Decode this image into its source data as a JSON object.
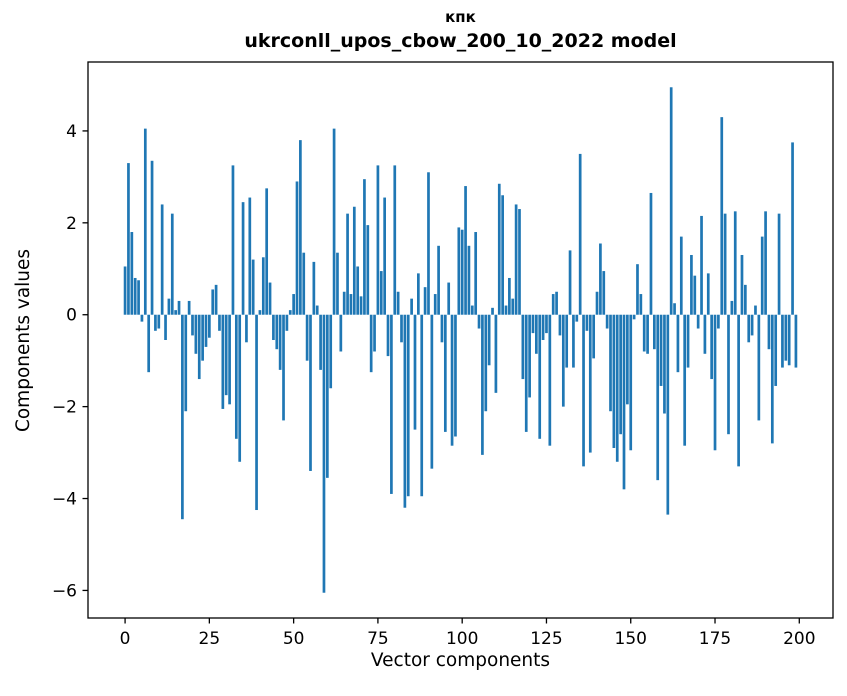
{
  "chart_data": {
    "type": "bar",
    "title": "кпк",
    "subtitle": "ukrconll_upos_cbow_200_10_2022 model",
    "xlabel": "Vector components",
    "ylabel": "Components values",
    "xlim": [
      -11,
      210
    ],
    "ylim": [
      -6.6,
      5.5
    ],
    "xticks": [
      0,
      25,
      50,
      75,
      100,
      125,
      150,
      175,
      200
    ],
    "yticks": [
      4,
      2,
      0,
      -2,
      -4,
      -6
    ],
    "grid": false,
    "legend": "none",
    "bar_color": "#1f77b4",
    "spine_color": "#000000",
    "bar_width_units": 0.8,
    "n_bars": 200,
    "values": [
      1.05,
      3.3,
      1.8,
      0.8,
      0.75,
      -0.15,
      4.05,
      -1.25,
      3.35,
      -0.35,
      -0.3,
      2.4,
      -0.55,
      0.35,
      2.2,
      0.1,
      0.3,
      -4.45,
      -2.1,
      0.3,
      -0.45,
      -0.85,
      -1.4,
      -1.0,
      -0.7,
      -0.5,
      0.55,
      0.65,
      -0.35,
      -2.05,
      -1.75,
      -1.95,
      3.25,
      -2.7,
      -3.2,
      2.45,
      -0.6,
      2.55,
      1.2,
      -4.25,
      0.1,
      1.25,
      2.75,
      0.7,
      -0.55,
      -0.75,
      -1.2,
      -2.3,
      -0.35,
      0.1,
      0.45,
      2.9,
      3.8,
      1.35,
      -1.0,
      -3.4,
      1.15,
      0.2,
      -1.2,
      -6.05,
      -3.55,
      -1.6,
      4.05,
      1.35,
      -0.8,
      0.5,
      2.2,
      0.45,
      2.35,
      1.05,
      0.4,
      2.95,
      1.95,
      -1.25,
      -0.8,
      3.25,
      0.95,
      2.55,
      -0.9,
      -3.9,
      3.25,
      0.5,
      -0.6,
      -4.2,
      -3.95,
      0.35,
      -2.5,
      0.9,
      -3.95,
      0.6,
      3.1,
      -3.35,
      0.45,
      1.5,
      -0.6,
      -2.55,
      0.7,
      -2.85,
      -2.65,
      1.9,
      1.85,
      2.8,
      1.5,
      0.2,
      1.8,
      -0.3,
      -3.05,
      -2.1,
      -1.1,
      0.15,
      -1.7,
      2.85,
      2.6,
      0.2,
      0.8,
      0.35,
      2.4,
      2.3,
      -1.4,
      -2.55,
      -1.8,
      -0.4,
      -0.85,
      -2.7,
      -0.55,
      -0.4,
      -2.85,
      0.45,
      0.5,
      -0.45,
      -2.0,
      -1.15,
      1.4,
      -1.15,
      -0.15,
      3.5,
      -3.3,
      -0.35,
      -3.0,
      -0.95,
      0.5,
      1.55,
      0.95,
      -0.3,
      -2.1,
      -2.9,
      -3.2,
      -2.6,
      -3.8,
      -1.95,
      -2.95,
      -0.1,
      1.1,
      0.45,
      -0.8,
      -0.85,
      2.65,
      -0.75,
      -3.6,
      -1.55,
      -2.15,
      -4.35,
      4.95,
      0.25,
      -1.25,
      1.7,
      -2.85,
      -1.15,
      1.3,
      0.85,
      -0.3,
      2.15,
      -0.85,
      0.9,
      -1.4,
      -2.95,
      -0.3,
      4.3,
      2.2,
      -2.6,
      0.3,
      2.25,
      -3.3,
      1.3,
      0.65,
      -0.6,
      -0.45,
      0.2,
      -2.3,
      1.7,
      2.25,
      -0.75,
      -2.8,
      -1.55,
      2.2,
      -1.15,
      -1.0,
      -1.1,
      3.75,
      -1.15
    ]
  }
}
